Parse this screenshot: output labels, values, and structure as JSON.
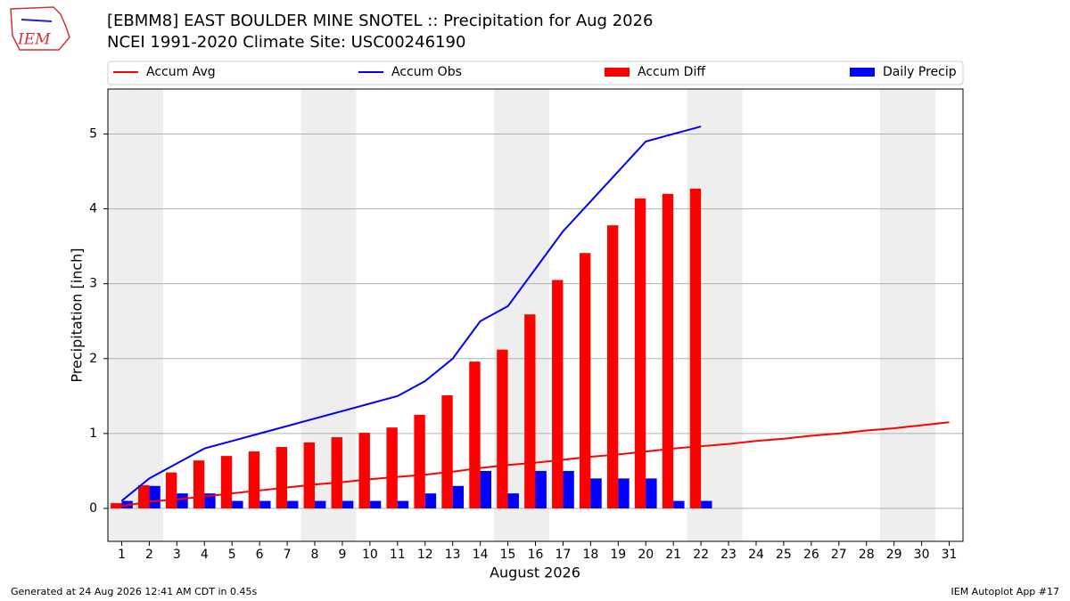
{
  "chart_data": {
    "type": "bar",
    "title": "[EBMM8] EAST BOULDER MINE SNOTEL :: Precipitation for Aug 2026",
    "subtitle": "NCEI 1991-2020 Climate Site: USC00246190",
    "logo_text": "IEM",
    "footer_left": "Generated at 24 Aug 2026 12:41 AM CDT in 0.45s",
    "footer_right": "IEM Autoplot App #17",
    "x_label": "August 2026",
    "y_label": "Precipitation [inch]",
    "x": [
      1,
      2,
      3,
      4,
      5,
      6,
      7,
      8,
      9,
      10,
      11,
      12,
      13,
      14,
      15,
      16,
      17,
      18,
      19,
      20,
      21,
      22,
      23,
      24,
      25,
      26,
      27,
      28,
      29,
      30,
      31
    ],
    "xlim": [
      0.5,
      31.5
    ],
    "xticks": [
      1,
      2,
      3,
      4,
      5,
      6,
      7,
      8,
      9,
      10,
      11,
      12,
      13,
      14,
      15,
      16,
      17,
      18,
      19,
      20,
      21,
      22,
      23,
      24,
      25,
      26,
      27,
      28,
      29,
      30,
      31
    ],
    "ylim": [
      -0.44,
      5.6
    ],
    "yticks": [
      0,
      1,
      2,
      3,
      4,
      5
    ],
    "grid": true,
    "legend": "top",
    "series": [
      {
        "name": "Accum Avg",
        "kind": "line",
        "color": "#ff0000",
        "values": [
          0.03,
          0.09,
          0.12,
          0.16,
          0.2,
          0.24,
          0.28,
          0.32,
          0.35,
          0.39,
          0.42,
          0.45,
          0.49,
          0.54,
          0.58,
          0.61,
          0.65,
          0.69,
          0.72,
          0.76,
          0.8,
          0.83,
          0.86,
          0.9,
          0.93,
          0.97,
          1.0,
          1.04,
          1.07,
          1.11,
          1.15
        ]
      },
      {
        "name": "Accum Obs",
        "kind": "line",
        "color": "#0000ff",
        "values": [
          0.1,
          0.4,
          0.6,
          0.8,
          0.9,
          1.0,
          1.1,
          1.2,
          1.3,
          1.4,
          1.5,
          1.7,
          2.0,
          2.5,
          2.7,
          3.2,
          3.7,
          4.1,
          4.5,
          4.9,
          5.0,
          5.1,
          null,
          null,
          null,
          null,
          null,
          null,
          null,
          null,
          null
        ]
      },
      {
        "name": "Accum Diff",
        "kind": "bar",
        "color": "#ff0000",
        "values": [
          0.07,
          0.31,
          0.48,
          0.64,
          0.7,
          0.76,
          0.82,
          0.88,
          0.95,
          1.01,
          1.08,
          1.25,
          1.51,
          1.96,
          2.12,
          2.59,
          3.05,
          3.41,
          3.78,
          4.14,
          4.2,
          4.27,
          null,
          null,
          null,
          null,
          null,
          null,
          null,
          null,
          null
        ]
      },
      {
        "name": "Daily Precip",
        "kind": "bar",
        "color": "#0000ff",
        "values": [
          0.1,
          0.3,
          0.2,
          0.2,
          0.1,
          0.1,
          0.1,
          0.1,
          0.1,
          0.1,
          0.1,
          0.2,
          0.3,
          0.5,
          0.2,
          0.5,
          0.5,
          0.4,
          0.4,
          0.4,
          0.1,
          0.1,
          null,
          null,
          null,
          null,
          null,
          null,
          null,
          null,
          null
        ]
      }
    ]
  }
}
